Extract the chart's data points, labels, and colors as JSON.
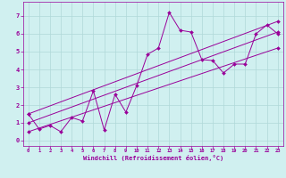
{
  "xlabel": "Windchill (Refroidissement éolien,°C)",
  "bg_color": "#d0f0f0",
  "line_color": "#990099",
  "grid_color": "#b0d8d8",
  "xlim": [
    -0.5,
    23.5
  ],
  "ylim": [
    -0.3,
    7.8
  ],
  "xticks": [
    0,
    1,
    2,
    3,
    4,
    5,
    6,
    7,
    8,
    9,
    10,
    11,
    12,
    13,
    14,
    15,
    16,
    17,
    18,
    19,
    20,
    21,
    22,
    23
  ],
  "yticks": [
    0,
    1,
    2,
    3,
    4,
    5,
    6,
    7
  ],
  "series1_x": [
    0,
    1,
    2,
    3,
    4,
    5,
    6,
    7,
    8,
    9,
    10,
    11,
    12,
    13,
    14,
    15,
    16,
    17,
    18,
    19,
    20,
    21,
    22,
    23
  ],
  "series1_y": [
    1.5,
    0.65,
    0.85,
    0.5,
    1.3,
    1.1,
    2.8,
    0.6,
    2.6,
    1.6,
    3.1,
    4.85,
    5.2,
    7.2,
    6.2,
    6.1,
    4.55,
    4.5,
    3.8,
    4.3,
    4.3,
    6.0,
    6.5,
    6.0
  ],
  "series2_x": [
    0,
    23
  ],
  "series2_y": [
    0.5,
    5.2
  ],
  "series3_x": [
    0,
    23
  ],
  "series3_y": [
    1.0,
    6.1
  ],
  "series4_x": [
    0,
    23
  ],
  "series4_y": [
    1.5,
    6.7
  ]
}
